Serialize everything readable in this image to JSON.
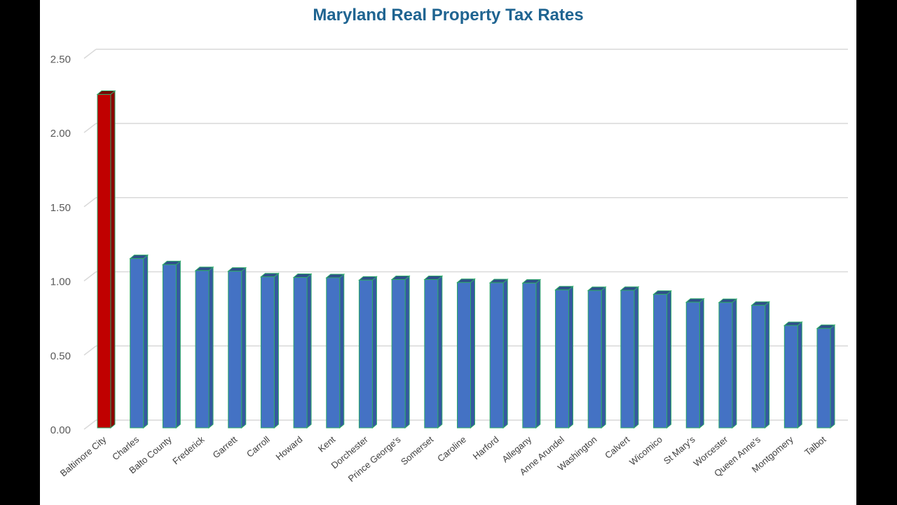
{
  "chart_data": {
    "type": "bar",
    "title": "Maryland Real Property Tax Rates",
    "xlabel": "",
    "ylabel": "",
    "ylim": [
      0,
      2.5
    ],
    "yticks": [
      "0.00",
      "0.50",
      "1.00",
      "1.50",
      "2.00",
      "2.50"
    ],
    "grid": true,
    "style": "3d-column",
    "categories": [
      "Baltimore City",
      "Charles",
      "Balto County",
      "Frederick",
      "Garrett",
      "Carroll",
      "Howard",
      "Kent",
      "Dorchester",
      "Prince George's",
      "Somerset",
      "Caroline",
      "Harford",
      "Allegany",
      "Anne Arundel",
      "Washington",
      "Calvert",
      "Wicomico",
      "St Mary's",
      "Worcester",
      "Queen Anne's",
      "Montgomery",
      "Talbot"
    ],
    "values": [
      2.248,
      1.141,
      1.1,
      1.06,
      1.056,
      1.018,
      1.014,
      1.012,
      0.996,
      1.0,
      1.0,
      0.98,
      0.978,
      0.976,
      0.93,
      0.926,
      0.927,
      0.9,
      0.847,
      0.845,
      0.826,
      0.69,
      0.67
    ],
    "colors": {
      "highlight": "#c00000",
      "default": "#4472c4",
      "outline": "#2eaa6a",
      "title": "#1f6491"
    }
  }
}
